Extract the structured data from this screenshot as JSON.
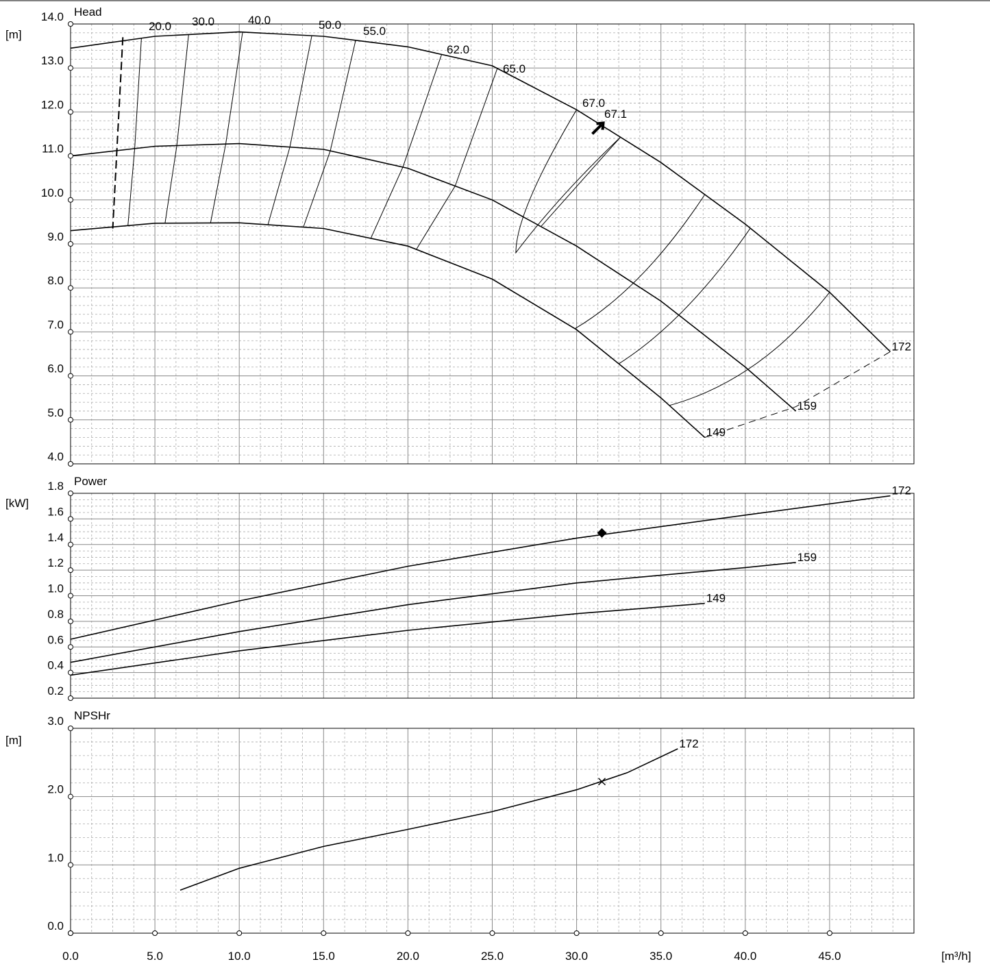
{
  "chart_data": [
    {
      "id": "head",
      "type": "line",
      "title": "Head",
      "ylabel": "[m]",
      "xlim": [
        0,
        50
      ],
      "ylim": [
        4,
        14
      ],
      "y_ticks": [
        "4.0",
        "5.0",
        "6.0",
        "7.0",
        "8.0",
        "9.0",
        "10.0",
        "11.0",
        "12.0",
        "13.0",
        "14.0"
      ],
      "series": [
        {
          "name": "172",
          "x": [
            0,
            5,
            10,
            15,
            20,
            25,
            30,
            35,
            40,
            45,
            48.6
          ],
          "y": [
            13.45,
            13.72,
            13.82,
            13.72,
            13.48,
            13.05,
            12.05,
            10.85,
            9.45,
            7.9,
            6.55
          ]
        },
        {
          "name": "159",
          "x": [
            0,
            5,
            10,
            15,
            20,
            25,
            30,
            35,
            40,
            43
          ],
          "y": [
            11.0,
            11.22,
            11.28,
            11.15,
            10.72,
            10.0,
            8.95,
            7.7,
            6.2,
            5.2
          ]
        },
        {
          "name": "149",
          "x": [
            0,
            5,
            10,
            15,
            20,
            25,
            30,
            35,
            37.6
          ],
          "y": [
            9.3,
            9.47,
            9.48,
            9.35,
            8.95,
            8.2,
            7.05,
            5.5,
            4.6
          ]
        }
      ],
      "efficiency_labels": [
        "20.0",
        "30.0",
        "40.0",
        "50.0",
        "55.0",
        "62.0",
        "65.0",
        "67.0",
        "67.1"
      ],
      "duty_point": {
        "x": 31.5,
        "y": 11.75
      }
    },
    {
      "id": "power",
      "type": "line",
      "title": "Power",
      "ylabel": "[kW]",
      "xlim": [
        0,
        50
      ],
      "ylim": [
        0.2,
        1.8
      ],
      "y_ticks": [
        "0.2",
        "0.4",
        "0.6",
        "0.8",
        "1.0",
        "1.2",
        "1.4",
        "1.6",
        "1.8"
      ],
      "series": [
        {
          "name": "172",
          "x": [
            0,
            10,
            20,
            30,
            40,
            48.6
          ],
          "y": [
            0.66,
            0.96,
            1.23,
            1.45,
            1.63,
            1.78
          ]
        },
        {
          "name": "159",
          "x": [
            0,
            10,
            20,
            30,
            40,
            43
          ],
          "y": [
            0.48,
            0.72,
            0.93,
            1.1,
            1.22,
            1.26
          ]
        },
        {
          "name": "149",
          "x": [
            0,
            10,
            20,
            30,
            37.6
          ],
          "y": [
            0.38,
            0.57,
            0.73,
            0.86,
            0.94
          ]
        }
      ],
      "duty_point": {
        "x": 31.5,
        "y": 1.49
      }
    },
    {
      "id": "npshr",
      "type": "line",
      "title": "NPSHr",
      "ylabel": "[m]",
      "xlabel": "[m³/h]",
      "xlim": [
        0,
        50
      ],
      "ylim": [
        0,
        3
      ],
      "y_ticks": [
        "0.0",
        "1.0",
        "2.0",
        "3.0"
      ],
      "x_ticks": [
        "0.0",
        "5.0",
        "10.0",
        "15.0",
        "20.0",
        "25.0",
        "30.0",
        "35.0",
        "40.0",
        "45.0"
      ],
      "series": [
        {
          "name": "172",
          "x": [
            6.5,
            10,
            15,
            20,
            25,
            30,
            33,
            36
          ],
          "y": [
            0.63,
            0.95,
            1.27,
            1.52,
            1.78,
            2.1,
            2.35,
            2.7
          ]
        }
      ],
      "duty_point": {
        "x": 31.5,
        "y": 2.22
      }
    }
  ]
}
